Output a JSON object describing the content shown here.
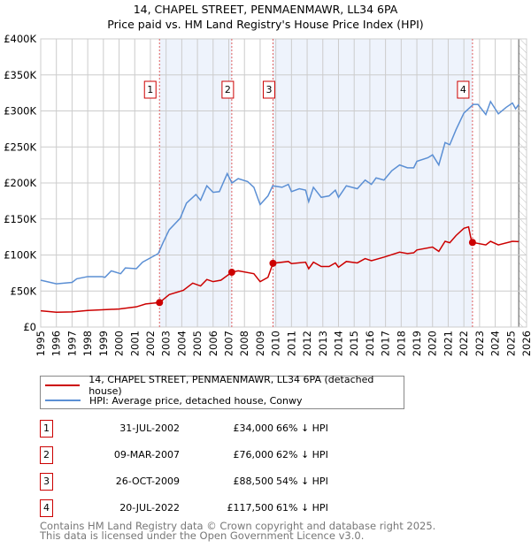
{
  "title": "14, CHAPEL STREET, PENMAENMAWR, LL34 6PA",
  "subtitle": "Price paid vs. HM Land Registry's House Price Index (HPI)",
  "colors": {
    "price": "#cc0000",
    "hpi": "#5b8fd4",
    "band": "#eef3fc"
  },
  "chart_data": {
    "type": "line",
    "title": "14, CHAPEL STREET, PENMAENMAWR, LL34 6PA",
    "xlim": [
      1995,
      2026
    ],
    "ylim": [
      0,
      400000
    ],
    "xticks": [
      "1995",
      "1996",
      "1997",
      "1998",
      "1999",
      "2000",
      "2001",
      "2002",
      "2003",
      "2004",
      "2005",
      "2006",
      "2007",
      "2008",
      "2009",
      "2010",
      "2011",
      "2012",
      "2013",
      "2014",
      "2015",
      "2016",
      "2017",
      "2018",
      "2019",
      "2020",
      "2021",
      "2022",
      "2023",
      "2024",
      "2025",
      "2026"
    ],
    "yticks": [
      {
        "v": 0,
        "label": "£0"
      },
      {
        "v": 50000,
        "label": "£50K"
      },
      {
        "v": 100000,
        "label": "£100K"
      },
      {
        "v": 150000,
        "label": "£150K"
      },
      {
        "v": 200000,
        "label": "£200K"
      },
      {
        "v": 250000,
        "label": "£250K"
      },
      {
        "v": 300000,
        "label": "£300K"
      },
      {
        "v": 350000,
        "label": "£350K"
      },
      {
        "v": 400000,
        "label": "£400K"
      }
    ],
    "grid": true,
    "bands": [
      [
        2002.58,
        2007.19
      ],
      [
        2009.82,
        2022.55
      ]
    ],
    "forecast_from": 2025.5,
    "series": [
      {
        "name": "14, CHAPEL STREET, PENMAENMAWR, LL34 6PA (detached house)",
        "color": "#cc0000",
        "x": [
          1995,
          1996,
          1997,
          1998,
          1998.9,
          2000,
          2001.1,
          2001.7,
          2002.58,
          2003.2,
          2004.1,
          2004.7,
          2005.2,
          2005.6,
          2006,
          2006.5,
          2007.19,
          2007.6,
          2008.6,
          2009,
          2009.5,
          2009.82,
          2010.8,
          2011,
          2011.9,
          2012.1,
          2012.4,
          2012.9,
          2013.4,
          2013.8,
          2014,
          2014.5,
          2015.2,
          2015.7,
          2016.1,
          2016.9,
          2017.9,
          2018.4,
          2018.8,
          2019,
          2020,
          2020.4,
          2020.8,
          2021.1,
          2021.5,
          2022,
          2022.3,
          2022.45,
          2022.55,
          2023.4,
          2023.7,
          2024.2,
          2025.1,
          2025.5
        ],
        "y": [
          22500,
          20500,
          21000,
          23000,
          24000,
          25000,
          28000,
          32000,
          34000,
          45000,
          51000,
          61000,
          57000,
          66000,
          63000,
          65000,
          76000,
          78000,
          74000,
          63000,
          69000,
          88500,
          91000,
          88000,
          90000,
          81000,
          90000,
          84000,
          84000,
          89000,
          83000,
          91000,
          89000,
          95000,
          92000,
          97000,
          104000,
          102000,
          103000,
          107000,
          111000,
          105000,
          119000,
          117000,
          127000,
          137000,
          139000,
          123000,
          117500,
          114000,
          119000,
          114000,
          119000,
          118600
        ]
      },
      {
        "name": "HPI: Average price, detached house, Conwy",
        "color": "#5b8fd4",
        "x": [
          1995,
          1996,
          1997,
          1997.3,
          1998,
          1998.9,
          1999.1,
          1999.5,
          2000.1,
          2000.4,
          2001.1,
          2001.5,
          2002,
          2002.5,
          2002.8,
          2003.2,
          2003.9,
          2004.3,
          2004.9,
          2005.2,
          2005.6,
          2006,
          2006.4,
          2006.9,
          2007.2,
          2007.6,
          2008.2,
          2008.6,
          2009,
          2009.5,
          2009.8,
          2010.4,
          2010.8,
          2011,
          2011.5,
          2011.9,
          2012.1,
          2012.4,
          2012.9,
          2013.4,
          2013.8,
          2014,
          2014.5,
          2015.2,
          2015.7,
          2016.1,
          2016.4,
          2016.9,
          2017.4,
          2017.9,
          2018.4,
          2018.8,
          2019,
          2019.7,
          2020,
          2020.4,
          2020.8,
          2021.1,
          2021.5,
          2022,
          2022.6,
          2022.9,
          2023.4,
          2023.7,
          2024.2,
          2024.7,
          2025.1,
          2025.3,
          2025.5
        ],
        "y": [
          65000,
          60000,
          62000,
          67000,
          70000,
          70000,
          69000,
          78000,
          74000,
          82000,
          81000,
          90000,
          96000,
          102000,
          117000,
          135000,
          151000,
          172000,
          184000,
          176000,
          196000,
          187000,
          188000,
          213000,
          200000,
          206000,
          202000,
          194000,
          170000,
          182000,
          196000,
          194000,
          198000,
          188000,
          192000,
          190000,
          174000,
          194000,
          180000,
          182000,
          190000,
          180000,
          196000,
          192000,
          204000,
          198000,
          207000,
          204000,
          217000,
          225000,
          221000,
          221000,
          230000,
          235000,
          239000,
          225000,
          256000,
          253000,
          274000,
          297000,
          309000,
          309000,
          295000,
          313000,
          296000,
          305000,
          311000,
          303000,
          309000
        ]
      }
    ],
    "sales": [
      {
        "n": "1",
        "x": 2002.58,
        "y": 34000
      },
      {
        "n": "2",
        "x": 2007.19,
        "y": 76000
      },
      {
        "n": "3",
        "x": 2009.82,
        "y": 88500
      },
      {
        "n": "4",
        "x": 2022.55,
        "y": 117500
      }
    ]
  },
  "legend": [
    "14, CHAPEL STREET, PENMAENMAWR, LL34 6PA (detached house)",
    "HPI: Average price, detached house, Conwy"
  ],
  "table": [
    {
      "n": "1",
      "date": "31-JUL-2002",
      "price": "£34,000",
      "hpi": "66% ↓ HPI"
    },
    {
      "n": "2",
      "date": "09-MAR-2007",
      "price": "£76,000",
      "hpi": "62% ↓ HPI"
    },
    {
      "n": "3",
      "date": "26-OCT-2009",
      "price": "£88,500",
      "hpi": "54% ↓ HPI"
    },
    {
      "n": "4",
      "date": "20-JUL-2022",
      "price": "£117,500",
      "hpi": "61% ↓ HPI"
    }
  ],
  "footer": [
    "Contains HM Land Registry data © Crown copyright and database right 2025.",
    "This data is licensed under the Open Government Licence v3.0."
  ]
}
